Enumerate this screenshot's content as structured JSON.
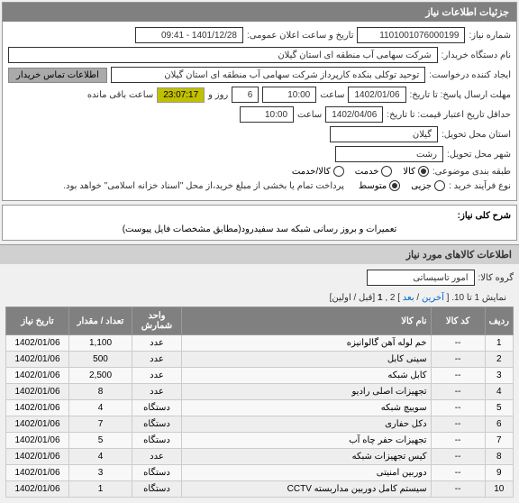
{
  "panel_title": "جزئیات اطلاعات نیاز",
  "fields": {
    "need_number_label": "شماره نیاز:",
    "need_number": "1101001076000199",
    "announce_label": "تاریخ و ساعت اعلان عمومی:",
    "announce_value": "1401/12/28 - 09:41",
    "buyer_org_label": "نام دستگاه خریدار:",
    "buyer_org": "شرکت سهامی آب منطقه ای استان گیلان",
    "creator_label": "ایجاد کننده درخواست:",
    "creator": "توحید توکلی بنکده کارپرداز شرکت سهامی آب منطقه ای استان گیلان",
    "contact_btn": "اطلاعات تماس خریدار",
    "deadline_label": "مهلت ارسال پاسخ: تا تاریخ:",
    "deadline_date": "1402/01/06",
    "time_label": "ساعت",
    "deadline_time": "10:00",
    "days_remain": "6",
    "days_label": "روز و",
    "countdown": "23:07:17",
    "remain_label": "ساعت باقی مانده",
    "validity_label": "حداقل تاریخ اعتبار قیمت: تا تاریخ:",
    "validity_date": "1402/04/06",
    "validity_time": "10:00",
    "province_label": "استان محل تحویل:",
    "province": "گیلان",
    "city_label": "شهر محل تحویل:",
    "city": "رشت",
    "category_label": "طبقه بندی موضوعی:",
    "cat_goods": "کالا",
    "cat_service": "خدمت",
    "cat_goods_service": "کالا/خدمت",
    "purchase_type_label": "نوع فرآیند خرید :",
    "pt_small": "جزیی",
    "pt_medium": "متوسط",
    "payment_note": "پرداخت تمام یا بخشی از مبلغ خرید،از محل \"اسناد خزانه اسلامی\" خواهد بود.",
    "desc_label": "شرح کلی نیاز:",
    "desc_text": "تعمیرات و بروز رسانی شبکه سد سفیدرود(مطابق مشخصات فایل پیوست)",
    "goods_section": "اطلاعات کالاهای مورد نیاز",
    "goods_group_label": "گروه کالا:",
    "goods_group": "امور تاسیساتی",
    "pagination_text": "نمایش 1 تا 10. [",
    "pag_last": "آخرین",
    "pag_sep": " / ",
    "pag_next": "بعد",
    "pag_close": "] 2 ,",
    "pag_current": "1",
    "pag_tail": "[قبل / اولین]"
  },
  "table": {
    "headers": {
      "row": "ردیف",
      "code": "کد کالا",
      "name": "نام کالا",
      "unit": "واحد شمارش",
      "qty": "تعداد / مقدار",
      "date": "تاریخ نیاز"
    },
    "rows": [
      {
        "n": "1",
        "code": "--",
        "name": "خم لوله آهن گالوانیزه",
        "unit": "عدد",
        "qty": "1,100",
        "date": "1402/01/06"
      },
      {
        "n": "2",
        "code": "--",
        "name": "سینی کابل",
        "unit": "عدد",
        "qty": "500",
        "date": "1402/01/06"
      },
      {
        "n": "3",
        "code": "--",
        "name": "کابل شبکه",
        "unit": "عدد",
        "qty": "2,500",
        "date": "1402/01/06"
      },
      {
        "n": "4",
        "code": "--",
        "name": "تجهیزات اصلی رادیو",
        "unit": "عدد",
        "qty": "8",
        "date": "1402/01/06"
      },
      {
        "n": "5",
        "code": "--",
        "name": "سوییچ شبکه",
        "unit": "دستگاه",
        "qty": "4",
        "date": "1402/01/06"
      },
      {
        "n": "6",
        "code": "--",
        "name": "دکل حفاری",
        "unit": "دستگاه",
        "qty": "7",
        "date": "1402/01/06"
      },
      {
        "n": "7",
        "code": "--",
        "name": "تجهیزات حفر چاه آب",
        "unit": "دستگاه",
        "qty": "5",
        "date": "1402/01/06"
      },
      {
        "n": "8",
        "code": "--",
        "name": "کیس تجهیزات شبکه",
        "unit": "عدد",
        "qty": "4",
        "date": "1402/01/06"
      },
      {
        "n": "9",
        "code": "--",
        "name": "دوربین امنیتی",
        "unit": "دستگاه",
        "qty": "3",
        "date": "1402/01/06"
      },
      {
        "n": "10",
        "code": "--",
        "name": "سیستم کامل دوربین مداربسته CCTV",
        "unit": "دستگاه",
        "qty": "1",
        "date": "1402/01/06"
      }
    ]
  }
}
